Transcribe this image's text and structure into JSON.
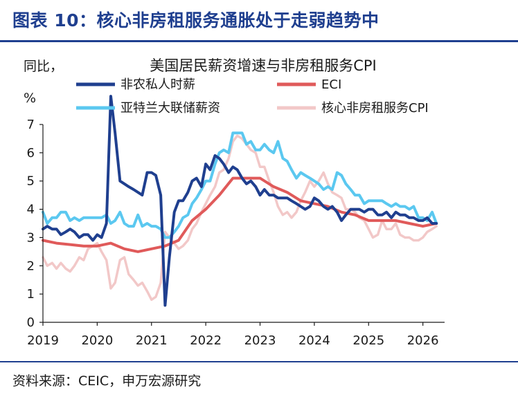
{
  "header": {
    "title": "图表 10：核心非房租服务通胀处于走弱趋势中"
  },
  "footer": {
    "source": "资料来源：CEIC，申万宏源研究"
  },
  "chart_data": {
    "type": "line",
    "title": "美国居民薪资增速与非房租服务CPI",
    "ylabel_line1": "同比，",
    "ylabel_line2": "%",
    "ylim": [
      0,
      7
    ],
    "yticks": [
      0,
      1,
      2,
      3,
      4,
      5,
      6,
      7
    ],
    "xlim": [
      2019.0,
      2026.4
    ],
    "xticks": [
      2019,
      2020,
      2021,
      2022,
      2023,
      2024,
      2025,
      2026
    ],
    "xtick_labels": [
      "2019",
      "2020",
      "2021",
      "2022",
      "2023",
      "2024",
      "2025",
      "2026"
    ],
    "grid": false,
    "legend_position": "top",
    "series": [
      {
        "name": "非农私人时薪",
        "color": "#1f3f8f",
        "points": [
          [
            2019.0,
            3.3
          ],
          [
            2019.08,
            3.4
          ],
          [
            2019.17,
            3.3
          ],
          [
            2019.25,
            3.3
          ],
          [
            2019.33,
            3.1
          ],
          [
            2019.42,
            3.2
          ],
          [
            2019.5,
            3.3
          ],
          [
            2019.58,
            3.2
          ],
          [
            2019.67,
            3.0
          ],
          [
            2019.75,
            3.1
          ],
          [
            2019.83,
            3.1
          ],
          [
            2019.92,
            2.9
          ],
          [
            2020.0,
            3.1
          ],
          [
            2020.08,
            3.0
          ],
          [
            2020.17,
            3.5
          ],
          [
            2020.25,
            8.0
          ],
          [
            2020.33,
            6.7
          ],
          [
            2020.42,
            5.0
          ],
          [
            2020.5,
            4.9
          ],
          [
            2020.58,
            4.8
          ],
          [
            2020.67,
            4.7
          ],
          [
            2020.75,
            4.6
          ],
          [
            2020.83,
            4.5
          ],
          [
            2020.92,
            5.3
          ],
          [
            2021.0,
            5.3
          ],
          [
            2021.08,
            5.2
          ],
          [
            2021.17,
            4.5
          ],
          [
            2021.25,
            0.6
          ],
          [
            2021.33,
            2.3
          ],
          [
            2021.42,
            3.9
          ],
          [
            2021.5,
            4.3
          ],
          [
            2021.58,
            4.3
          ],
          [
            2021.67,
            4.6
          ],
          [
            2021.75,
            5.0
          ],
          [
            2021.83,
            5.1
          ],
          [
            2021.92,
            4.8
          ],
          [
            2022.0,
            5.6
          ],
          [
            2022.08,
            5.4
          ],
          [
            2022.17,
            5.9
          ],
          [
            2022.25,
            5.8
          ],
          [
            2022.33,
            5.6
          ],
          [
            2022.42,
            5.3
          ],
          [
            2022.5,
            5.5
          ],
          [
            2022.58,
            5.4
          ],
          [
            2022.67,
            5.1
          ],
          [
            2022.75,
            4.9
          ],
          [
            2022.83,
            5.0
          ],
          [
            2022.92,
            4.8
          ],
          [
            2023.0,
            4.5
          ],
          [
            2023.08,
            4.7
          ],
          [
            2023.17,
            4.5
          ],
          [
            2023.25,
            4.5
          ],
          [
            2023.33,
            4.4
          ],
          [
            2023.42,
            4.4
          ],
          [
            2023.5,
            4.4
          ],
          [
            2023.58,
            4.3
          ],
          [
            2023.67,
            4.2
          ],
          [
            2023.75,
            4.1
          ],
          [
            2023.83,
            4.0
          ],
          [
            2023.92,
            4.1
          ],
          [
            2024.0,
            4.4
          ],
          [
            2024.08,
            4.3
          ],
          [
            2024.17,
            4.1
          ],
          [
            2024.25,
            4.0
          ],
          [
            2024.33,
            4.1
          ],
          [
            2024.42,
            3.9
          ],
          [
            2024.5,
            3.6
          ],
          [
            2024.58,
            3.8
          ],
          [
            2024.67,
            4.0
          ],
          [
            2024.75,
            4.0
          ],
          [
            2024.83,
            4.0
          ],
          [
            2024.92,
            3.9
          ],
          [
            2025.0,
            4.0
          ],
          [
            2025.08,
            4.0
          ],
          [
            2025.17,
            3.8
          ],
          [
            2025.25,
            3.8
          ],
          [
            2025.33,
            3.9
          ],
          [
            2025.42,
            3.7
          ],
          [
            2025.5,
            3.9
          ],
          [
            2025.58,
            3.8
          ],
          [
            2025.67,
            3.8
          ],
          [
            2025.75,
            3.7
          ],
          [
            2025.83,
            3.7
          ],
          [
            2025.92,
            3.6
          ],
          [
            2026.0,
            3.6
          ],
          [
            2026.08,
            3.7
          ],
          [
            2026.17,
            3.5
          ],
          [
            2026.25,
            3.5
          ]
        ]
      },
      {
        "name": "ECI",
        "color": "#e05a5a",
        "points": [
          [
            2019.0,
            2.9
          ],
          [
            2019.25,
            2.8
          ],
          [
            2019.5,
            2.75
          ],
          [
            2019.75,
            2.7
          ],
          [
            2020.0,
            2.7
          ],
          [
            2020.25,
            2.8
          ],
          [
            2020.5,
            2.6
          ],
          [
            2020.75,
            2.5
          ],
          [
            2021.0,
            2.6
          ],
          [
            2021.25,
            2.7
          ],
          [
            2021.5,
            2.9
          ],
          [
            2021.75,
            3.6
          ],
          [
            2022.0,
            4.0
          ],
          [
            2022.25,
            4.5
          ],
          [
            2022.5,
            5.1
          ],
          [
            2022.75,
            5.1
          ],
          [
            2023.0,
            5.1
          ],
          [
            2023.25,
            4.8
          ],
          [
            2023.5,
            4.6
          ],
          [
            2023.75,
            4.3
          ],
          [
            2024.0,
            4.2
          ],
          [
            2024.25,
            4.1
          ],
          [
            2024.5,
            3.9
          ],
          [
            2024.75,
            3.8
          ],
          [
            2025.0,
            3.6
          ],
          [
            2025.25,
            3.6
          ],
          [
            2025.5,
            3.6
          ],
          [
            2025.75,
            3.5
          ],
          [
            2026.0,
            3.4
          ],
          [
            2026.25,
            3.5
          ]
        ]
      },
      {
        "name": "亚特兰大联储薪资",
        "color": "#5bc8f0",
        "points": [
          [
            2019.0,
            3.9
          ],
          [
            2019.08,
            3.5
          ],
          [
            2019.17,
            3.7
          ],
          [
            2019.25,
            3.7
          ],
          [
            2019.33,
            3.9
          ],
          [
            2019.42,
            3.9
          ],
          [
            2019.5,
            3.6
          ],
          [
            2019.58,
            3.7
          ],
          [
            2019.67,
            3.6
          ],
          [
            2019.75,
            3.7
          ],
          [
            2019.83,
            3.7
          ],
          [
            2019.92,
            3.7
          ],
          [
            2020.0,
            3.7
          ],
          [
            2020.08,
            3.7
          ],
          [
            2020.17,
            3.8
          ],
          [
            2020.25,
            3.5
          ],
          [
            2020.33,
            3.6
          ],
          [
            2020.42,
            3.9
          ],
          [
            2020.5,
            3.5
          ],
          [
            2020.58,
            3.4
          ],
          [
            2020.67,
            3.4
          ],
          [
            2020.75,
            3.8
          ],
          [
            2020.83,
            3.4
          ],
          [
            2020.92,
            3.5
          ],
          [
            2021.0,
            3.4
          ],
          [
            2021.08,
            3.4
          ],
          [
            2021.17,
            3.3
          ],
          [
            2021.25,
            3.0
          ],
          [
            2021.33,
            3.0
          ],
          [
            2021.42,
            3.2
          ],
          [
            2021.5,
            3.4
          ],
          [
            2021.58,
            3.7
          ],
          [
            2021.67,
            3.8
          ],
          [
            2021.75,
            4.2
          ],
          [
            2021.83,
            4.4
          ],
          [
            2021.92,
            4.7
          ],
          [
            2022.0,
            5.0
          ],
          [
            2022.08,
            5.0
          ],
          [
            2022.17,
            5.6
          ],
          [
            2022.25,
            6.0
          ],
          [
            2022.33,
            6.1
          ],
          [
            2022.42,
            6.0
          ],
          [
            2022.5,
            6.7
          ],
          [
            2022.58,
            6.7
          ],
          [
            2022.67,
            6.7
          ],
          [
            2022.75,
            6.3
          ],
          [
            2022.83,
            6.4
          ],
          [
            2022.92,
            6.1
          ],
          [
            2023.0,
            6.1
          ],
          [
            2023.08,
            6.3
          ],
          [
            2023.17,
            6.1
          ],
          [
            2023.25,
            6.0
          ],
          [
            2023.33,
            6.4
          ],
          [
            2023.42,
            5.8
          ],
          [
            2023.5,
            5.7
          ],
          [
            2023.58,
            5.4
          ],
          [
            2023.67,
            5.1
          ],
          [
            2023.75,
            5.3
          ],
          [
            2023.83,
            5.2
          ],
          [
            2023.92,
            5.1
          ],
          [
            2024.0,
            5.0
          ],
          [
            2024.08,
            4.9
          ],
          [
            2024.17,
            4.7
          ],
          [
            2024.25,
            4.8
          ],
          [
            2024.33,
            4.7
          ],
          [
            2024.42,
            5.3
          ],
          [
            2024.5,
            5.2
          ],
          [
            2024.58,
            4.9
          ],
          [
            2024.67,
            4.7
          ],
          [
            2024.75,
            4.5
          ],
          [
            2024.83,
            4.5
          ],
          [
            2024.92,
            4.2
          ],
          [
            2025.0,
            4.3
          ],
          [
            2025.08,
            4.3
          ],
          [
            2025.17,
            4.3
          ],
          [
            2025.25,
            4.3
          ],
          [
            2025.33,
            4.2
          ],
          [
            2025.42,
            4.1
          ],
          [
            2025.5,
            4.2
          ],
          [
            2025.58,
            4.1
          ],
          [
            2025.67,
            4.1
          ],
          [
            2025.75,
            4.0
          ],
          [
            2025.83,
            4.1
          ],
          [
            2025.92,
            3.7
          ],
          [
            2026.0,
            3.7
          ],
          [
            2026.08,
            3.6
          ],
          [
            2026.17,
            3.9
          ],
          [
            2026.25,
            3.5
          ]
        ]
      },
      {
        "name": "核心非房租服务CPI",
        "color": "#f2c8c8",
        "points": [
          [
            2019.0,
            2.3
          ],
          [
            2019.08,
            2.0
          ],
          [
            2019.17,
            2.1
          ],
          [
            2019.25,
            1.9
          ],
          [
            2019.33,
            2.1
          ],
          [
            2019.42,
            1.9
          ],
          [
            2019.5,
            1.8
          ],
          [
            2019.58,
            2.0
          ],
          [
            2019.67,
            2.3
          ],
          [
            2019.75,
            2.2
          ],
          [
            2019.83,
            2.6
          ],
          [
            2019.92,
            2.7
          ],
          [
            2020.0,
            2.8
          ],
          [
            2020.08,
            2.5
          ],
          [
            2020.17,
            2.2
          ],
          [
            2020.25,
            1.2
          ],
          [
            2020.33,
            1.4
          ],
          [
            2020.42,
            2.2
          ],
          [
            2020.5,
            2.3
          ],
          [
            2020.58,
            1.7
          ],
          [
            2020.67,
            1.5
          ],
          [
            2020.75,
            1.3
          ],
          [
            2020.83,
            1.4
          ],
          [
            2020.92,
            1.1
          ],
          [
            2021.0,
            0.8
          ],
          [
            2021.08,
            0.9
          ],
          [
            2021.17,
            1.4
          ],
          [
            2021.25,
            3.2
          ],
          [
            2021.33,
            3.0
          ],
          [
            2021.42,
            2.8
          ],
          [
            2021.5,
            2.6
          ],
          [
            2021.58,
            2.7
          ],
          [
            2021.67,
            2.9
          ],
          [
            2021.75,
            3.3
          ],
          [
            2021.83,
            3.5
          ],
          [
            2021.92,
            3.9
          ],
          [
            2022.0,
            4.2
          ],
          [
            2022.08,
            4.5
          ],
          [
            2022.17,
            4.8
          ],
          [
            2022.25,
            5.3
          ],
          [
            2022.33,
            5.4
          ],
          [
            2022.42,
            5.8
          ],
          [
            2022.5,
            6.4
          ],
          [
            2022.58,
            6.6
          ],
          [
            2022.67,
            6.5
          ],
          [
            2022.75,
            6.3
          ],
          [
            2022.83,
            6.1
          ],
          [
            2022.92,
            6.0
          ],
          [
            2023.0,
            5.5
          ],
          [
            2023.08,
            5.5
          ],
          [
            2023.17,
            5.0
          ],
          [
            2023.25,
            4.6
          ],
          [
            2023.33,
            4.1
          ],
          [
            2023.42,
            3.8
          ],
          [
            2023.5,
            3.9
          ],
          [
            2023.58,
            3.7
          ],
          [
            2023.67,
            3.9
          ],
          [
            2023.75,
            4.3
          ],
          [
            2023.83,
            4.6
          ],
          [
            2023.92,
            5.0
          ],
          [
            2024.0,
            4.8
          ],
          [
            2024.08,
            5.0
          ],
          [
            2024.17,
            5.3
          ],
          [
            2024.25,
            4.9
          ],
          [
            2024.33,
            4.6
          ],
          [
            2024.42,
            4.5
          ],
          [
            2024.5,
            4.4
          ],
          [
            2024.58,
            4.0
          ],
          [
            2024.67,
            4.0
          ],
          [
            2024.75,
            3.9
          ],
          [
            2024.83,
            3.7
          ],
          [
            2024.92,
            3.6
          ],
          [
            2025.0,
            3.3
          ],
          [
            2025.08,
            3.0
          ],
          [
            2025.17,
            3.1
          ],
          [
            2025.25,
            3.6
          ],
          [
            2025.33,
            3.3
          ],
          [
            2025.42,
            3.3
          ],
          [
            2025.5,
            3.5
          ],
          [
            2025.58,
            3.1
          ],
          [
            2025.67,
            3.0
          ],
          [
            2025.75,
            3.0
          ],
          [
            2025.83,
            2.9
          ],
          [
            2025.92,
            2.9
          ],
          [
            2026.0,
            3.0
          ],
          [
            2026.08,
            3.2
          ],
          [
            2026.17,
            3.3
          ],
          [
            2026.25,
            3.4
          ]
        ]
      }
    ]
  }
}
